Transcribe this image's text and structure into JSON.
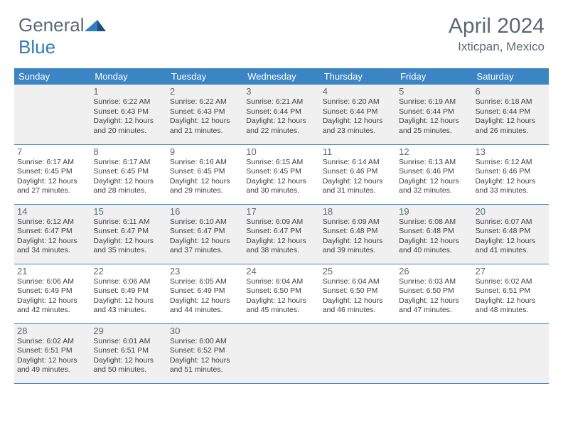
{
  "brand": {
    "name_a": "General",
    "name_b": "Blue"
  },
  "title": "April 2024",
  "location": "Ixticpan, Mexico",
  "accent_color": "#3c85c5",
  "shade_color": "#f0f0f0",
  "text_muted": "#5a6a75",
  "weekdays": [
    "Sunday",
    "Monday",
    "Tuesday",
    "Wednesday",
    "Thursday",
    "Friday",
    "Saturday"
  ],
  "grid": {
    "first_weekday_index": 1,
    "days_in_month": 30,
    "shaded_rows": [
      0,
      2,
      4
    ]
  },
  "days": [
    {
      "n": 1,
      "sunrise": "6:22 AM",
      "sunset": "6:43 PM",
      "daylight": "12 hours and 20 minutes."
    },
    {
      "n": 2,
      "sunrise": "6:22 AM",
      "sunset": "6:43 PM",
      "daylight": "12 hours and 21 minutes."
    },
    {
      "n": 3,
      "sunrise": "6:21 AM",
      "sunset": "6:44 PM",
      "daylight": "12 hours and 22 minutes."
    },
    {
      "n": 4,
      "sunrise": "6:20 AM",
      "sunset": "6:44 PM",
      "daylight": "12 hours and 23 minutes."
    },
    {
      "n": 5,
      "sunrise": "6:19 AM",
      "sunset": "6:44 PM",
      "daylight": "12 hours and 25 minutes."
    },
    {
      "n": 6,
      "sunrise": "6:18 AM",
      "sunset": "6:44 PM",
      "daylight": "12 hours and 26 minutes."
    },
    {
      "n": 7,
      "sunrise": "6:17 AM",
      "sunset": "6:45 PM",
      "daylight": "12 hours and 27 minutes."
    },
    {
      "n": 8,
      "sunrise": "6:17 AM",
      "sunset": "6:45 PM",
      "daylight": "12 hours and 28 minutes."
    },
    {
      "n": 9,
      "sunrise": "6:16 AM",
      "sunset": "6:45 PM",
      "daylight": "12 hours and 29 minutes."
    },
    {
      "n": 10,
      "sunrise": "6:15 AM",
      "sunset": "6:45 PM",
      "daylight": "12 hours and 30 minutes."
    },
    {
      "n": 11,
      "sunrise": "6:14 AM",
      "sunset": "6:46 PM",
      "daylight": "12 hours and 31 minutes."
    },
    {
      "n": 12,
      "sunrise": "6:13 AM",
      "sunset": "6:46 PM",
      "daylight": "12 hours and 32 minutes."
    },
    {
      "n": 13,
      "sunrise": "6:12 AM",
      "sunset": "6:46 PM",
      "daylight": "12 hours and 33 minutes."
    },
    {
      "n": 14,
      "sunrise": "6:12 AM",
      "sunset": "6:47 PM",
      "daylight": "12 hours and 34 minutes."
    },
    {
      "n": 15,
      "sunrise": "6:11 AM",
      "sunset": "6:47 PM",
      "daylight": "12 hours and 35 minutes."
    },
    {
      "n": 16,
      "sunrise": "6:10 AM",
      "sunset": "6:47 PM",
      "daylight": "12 hours and 37 minutes."
    },
    {
      "n": 17,
      "sunrise": "6:09 AM",
      "sunset": "6:47 PM",
      "daylight": "12 hours and 38 minutes."
    },
    {
      "n": 18,
      "sunrise": "6:09 AM",
      "sunset": "6:48 PM",
      "daylight": "12 hours and 39 minutes."
    },
    {
      "n": 19,
      "sunrise": "6:08 AM",
      "sunset": "6:48 PM",
      "daylight": "12 hours and 40 minutes."
    },
    {
      "n": 20,
      "sunrise": "6:07 AM",
      "sunset": "6:48 PM",
      "daylight": "12 hours and 41 minutes."
    },
    {
      "n": 21,
      "sunrise": "6:06 AM",
      "sunset": "6:49 PM",
      "daylight": "12 hours and 42 minutes."
    },
    {
      "n": 22,
      "sunrise": "6:06 AM",
      "sunset": "6:49 PM",
      "daylight": "12 hours and 43 minutes."
    },
    {
      "n": 23,
      "sunrise": "6:05 AM",
      "sunset": "6:49 PM",
      "daylight": "12 hours and 44 minutes."
    },
    {
      "n": 24,
      "sunrise": "6:04 AM",
      "sunset": "6:50 PM",
      "daylight": "12 hours and 45 minutes."
    },
    {
      "n": 25,
      "sunrise": "6:04 AM",
      "sunset": "6:50 PM",
      "daylight": "12 hours and 46 minutes."
    },
    {
      "n": 26,
      "sunrise": "6:03 AM",
      "sunset": "6:50 PM",
      "daylight": "12 hours and 47 minutes."
    },
    {
      "n": 27,
      "sunrise": "6:02 AM",
      "sunset": "6:51 PM",
      "daylight": "12 hours and 48 minutes."
    },
    {
      "n": 28,
      "sunrise": "6:02 AM",
      "sunset": "6:51 PM",
      "daylight": "12 hours and 49 minutes."
    },
    {
      "n": 29,
      "sunrise": "6:01 AM",
      "sunset": "6:51 PM",
      "daylight": "12 hours and 50 minutes."
    },
    {
      "n": 30,
      "sunrise": "6:00 AM",
      "sunset": "6:52 PM",
      "daylight": "12 hours and 51 minutes."
    }
  ],
  "labels": {
    "sunrise": "Sunrise:",
    "sunset": "Sunset:",
    "daylight": "Daylight:"
  }
}
